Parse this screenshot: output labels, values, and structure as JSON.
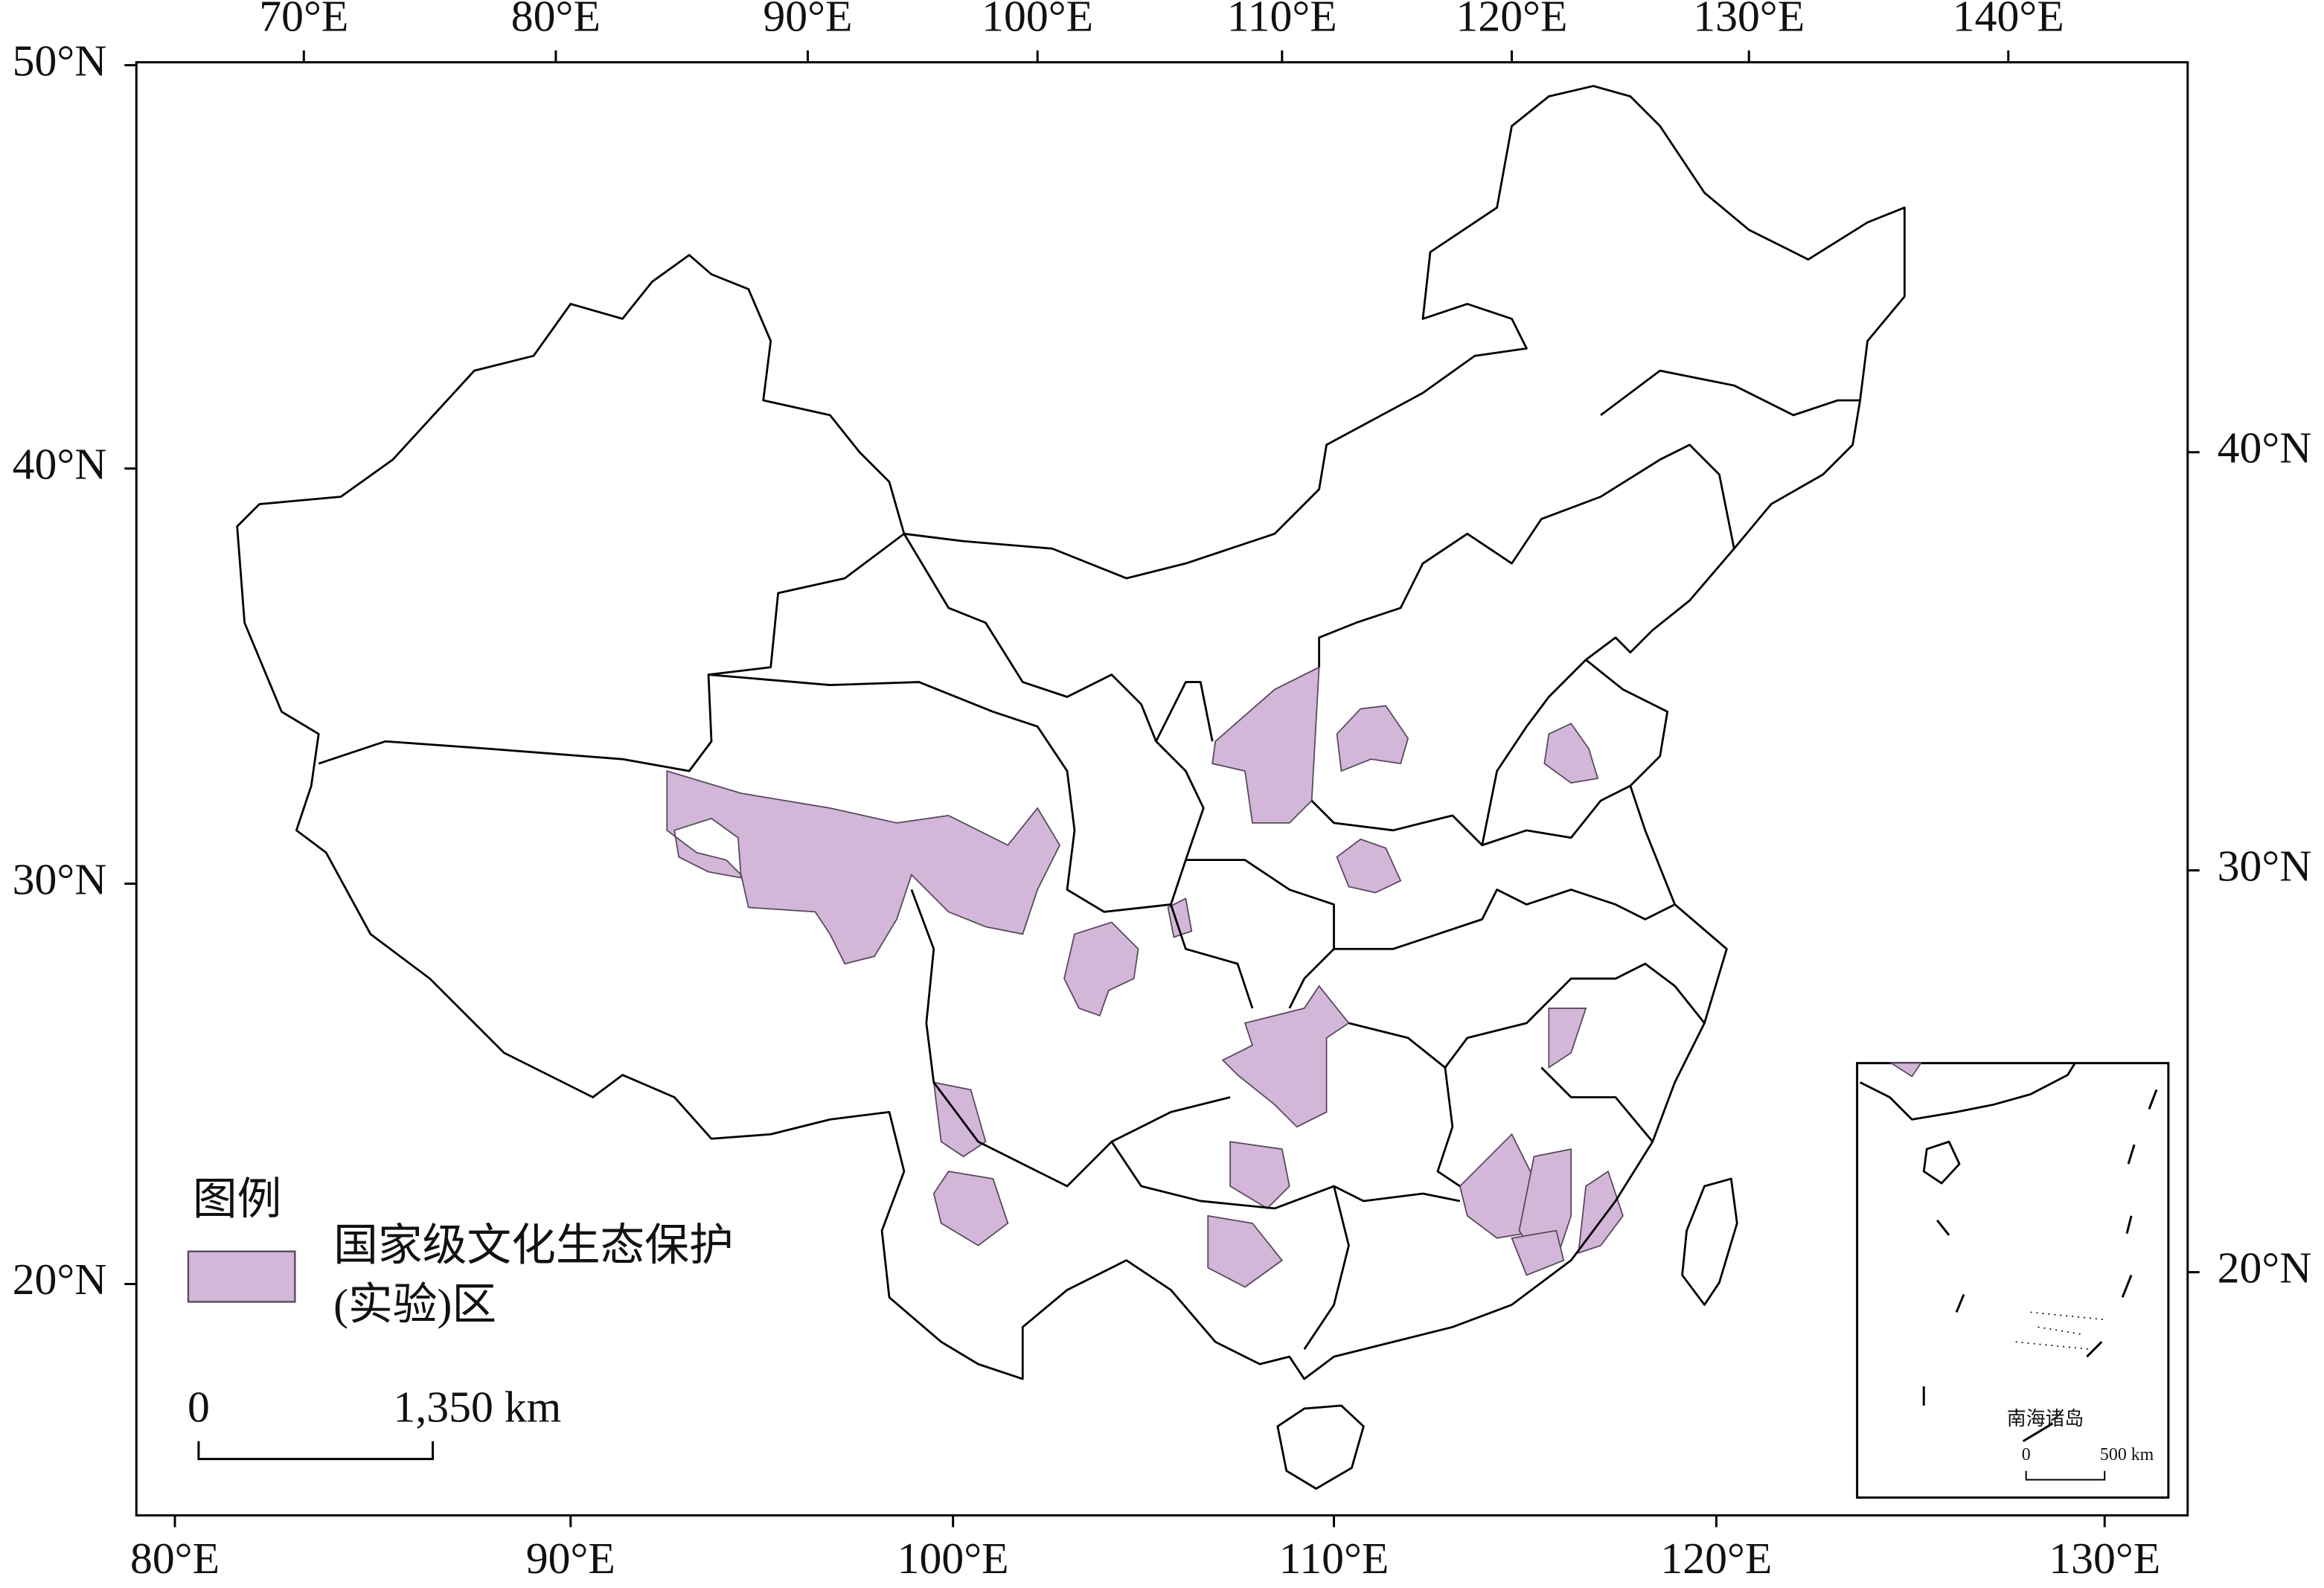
{
  "axes": {
    "top": [
      "70°E",
      "80°E",
      "90°E",
      "100°E",
      "110°E",
      "120°E",
      "130°E",
      "140°E"
    ],
    "bottom": [
      "80°E",
      "90°E",
      "100°E",
      "110°E",
      "120°E",
      "130°E"
    ],
    "left": [
      "50°N",
      "40°N",
      "30°N",
      "20°N"
    ],
    "right": [
      "40°N",
      "30°N",
      "20°N"
    ]
  },
  "legend": {
    "title": "图例",
    "item": [
      "国家级文化生态保护",
      "(实验)区"
    ]
  },
  "scale_bar": {
    "start": "0",
    "end": "1,350 km"
  },
  "inset": {
    "title": "南海诸岛",
    "scale_start": "0",
    "scale_end": "500 km"
  }
}
